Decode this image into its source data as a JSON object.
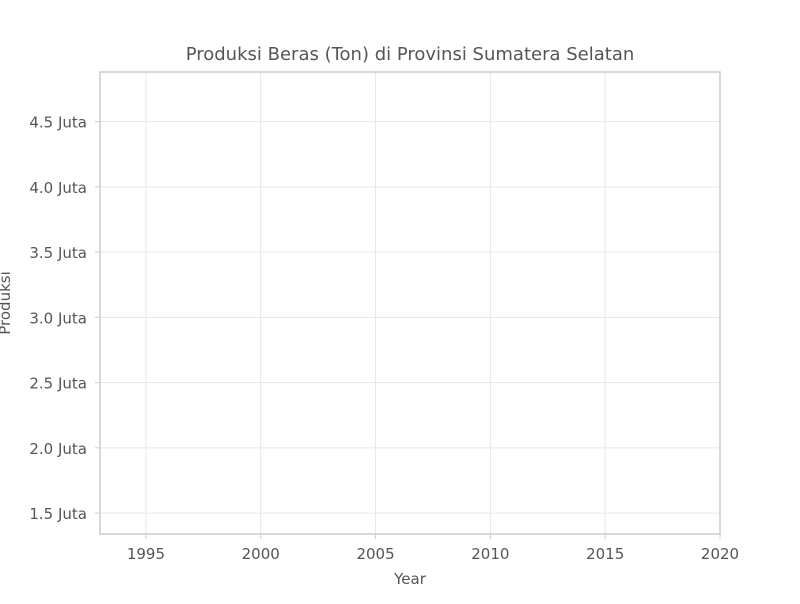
{
  "chart_data": {
    "type": "line",
    "title": "Produksi Beras (Ton) di Provinsi Sumatera Selatan",
    "xlabel": "Year",
    "ylabel": "Produksi",
    "xlim": [
      1993,
      2020
    ],
    "ylim": [
      1.34,
      4.88
    ],
    "x_ticks": [
      {
        "value": 1995,
        "label": "1995"
      },
      {
        "value": 2000,
        "label": "2000"
      },
      {
        "value": 2005,
        "label": "2005"
      },
      {
        "value": 2010,
        "label": "2010"
      },
      {
        "value": 2015,
        "label": "2015"
      },
      {
        "value": 2020,
        "label": "2020"
      }
    ],
    "y_ticks": [
      {
        "value": 1.5,
        "label": "1.5 Juta"
      },
      {
        "value": 2.0,
        "label": "2.0 Juta"
      },
      {
        "value": 2.5,
        "label": "2.5 Juta"
      },
      {
        "value": 3.0,
        "label": "3.0 Juta"
      },
      {
        "value": 3.5,
        "label": "3.5 Juta"
      },
      {
        "value": 4.0,
        "label": "4.0 Juta"
      },
      {
        "value": 4.5,
        "label": "4.5 Juta"
      }
    ],
    "grid": true,
    "series": [],
    "colors": {
      "text": "#555555",
      "grid": "#e6e6e6",
      "axis": "#cccccc",
      "background": "#ffffff"
    }
  }
}
